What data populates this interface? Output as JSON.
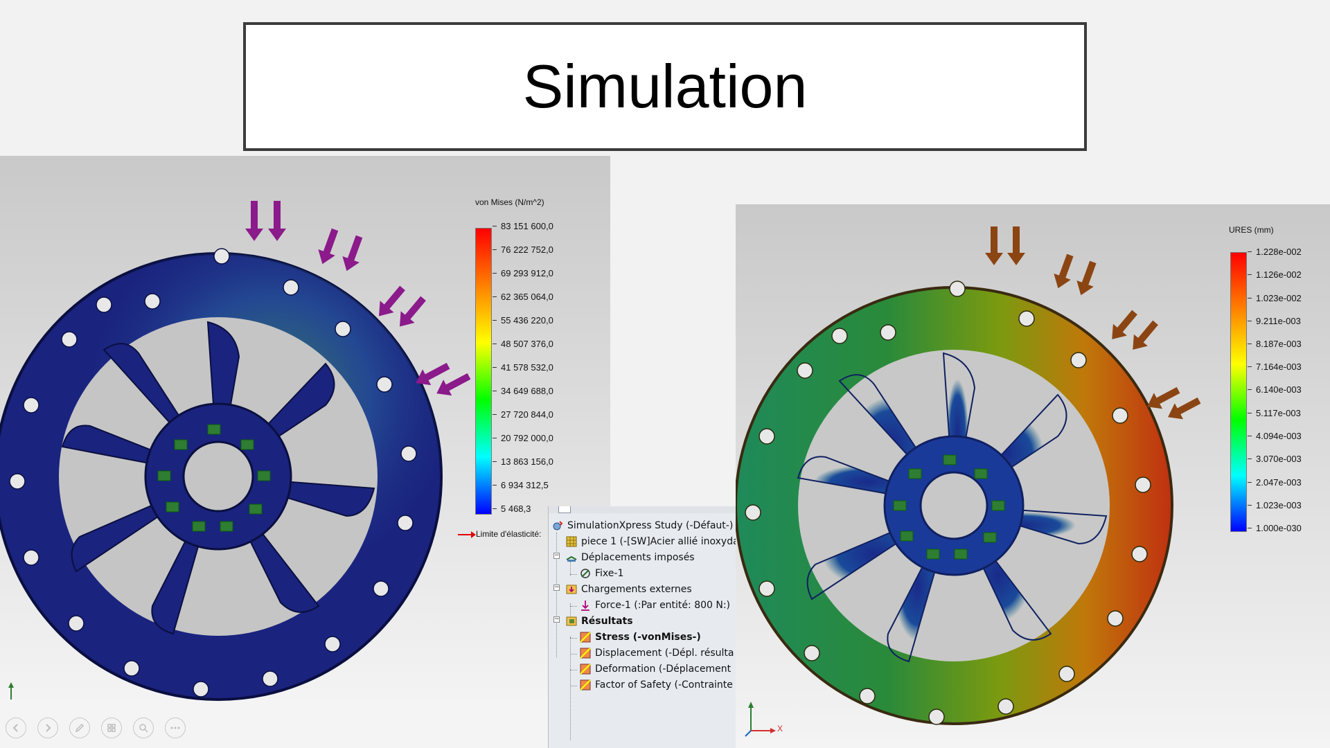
{
  "slide": {
    "title": "Simulation"
  },
  "left_view": {
    "legend_title": "von Mises (N/m^2)",
    "legend_values": [
      "83 151 600,0",
      "76 222 752,0",
      "69 293 912,0",
      "62 365 064,0",
      "55 436 220,0",
      "48 507 376,0",
      "41 578 532,0",
      "34 649 688,0",
      "27 720 844,0",
      "20 792 000,0",
      "13 863 156,0",
      "6 934 312,5",
      "5 468,3"
    ],
    "yield_label": "Limite d'élasticité:",
    "arrow_color": "#8b1a8b",
    "body_color": "#1a237e"
  },
  "right_view": {
    "legend_title": "URES (mm)",
    "legend_values": [
      "1.228e-002",
      "1.126e-002",
      "1.023e-002",
      "9.211e-003",
      "8.187e-003",
      "7.164e-003",
      "6.140e-003",
      "5.117e-003",
      "4.094e-003",
      "3.070e-003",
      "2.047e-003",
      "1.023e-003",
      "1.000e-030"
    ],
    "arrow_color": "#8b4513",
    "axis_label": "X"
  },
  "study_tree": {
    "items": [
      {
        "label": "SimulationXpress Study (-Défaut-)",
        "icon": "study-icon"
      },
      {
        "label": "piece 1 (-[SW]Acier allié inoxyda",
        "icon": "part-icon"
      },
      {
        "label": "Déplacements imposés",
        "icon": "fixtures-folder-icon"
      },
      {
        "label": "Fixe-1",
        "icon": "fixed-geometry-icon"
      },
      {
        "label": "Chargements externes",
        "icon": "loads-folder-icon"
      },
      {
        "label": "Force-1 (:Par entité: 800 N:)",
        "icon": "force-icon"
      },
      {
        "label": "Résultats",
        "icon": "results-folder-icon"
      },
      {
        "label": "Stress (-vonMises-)",
        "icon": "result-plot-icon"
      },
      {
        "label": "Displacement (-Dépl. résulta",
        "icon": "result-plot-icon"
      },
      {
        "label": "Deformation (-Déplacement",
        "icon": "result-plot-icon"
      },
      {
        "label": "Factor of Safety (-Contrainte",
        "icon": "result-plot-icon"
      }
    ]
  },
  "nav_controls": [
    "previous-icon",
    "next-icon",
    "pen-icon",
    "slides-grid-icon",
    "zoom-icon",
    "more-icon"
  ]
}
